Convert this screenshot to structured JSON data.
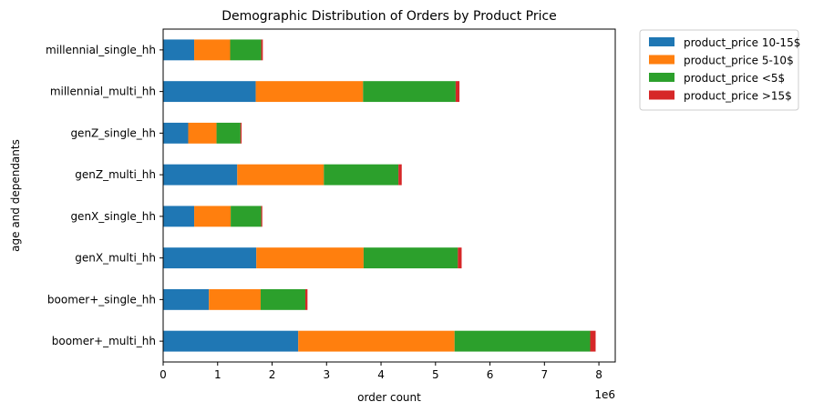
{
  "chart_data": {
    "type": "bar",
    "orientation": "horizontal",
    "stacked": true,
    "title": "Demographic Distribution of Orders by Product Price",
    "xlabel": "order count",
    "ylabel": "age and dependants",
    "x_scale_label": "1e6",
    "xlim": [
      0,
      8.3
    ],
    "xticks": [
      0,
      1,
      2,
      3,
      4,
      5,
      6,
      7,
      8
    ],
    "grid": false,
    "legend_position": "outside-top-right",
    "categories": [
      "boomer+_multi_hh",
      "boomer+_single_hh",
      "genX_multi_hh",
      "genX_single_hh",
      "genZ_multi_hh",
      "genZ_single_hh",
      "millennial_multi_hh",
      "millennial_single_hh"
    ],
    "series": [
      {
        "name": "product_price 10-15$",
        "color": "#1f77b4",
        "values": [
          2.48,
          0.84,
          1.71,
          0.57,
          1.36,
          0.46,
          1.7,
          0.57
        ]
      },
      {
        "name": "product_price 5-10$",
        "color": "#ff7f0e",
        "values": [
          2.87,
          0.95,
          1.97,
          0.67,
          1.59,
          0.52,
          1.97,
          0.66
        ]
      },
      {
        "name": "product_price <5$",
        "color": "#2ca02c",
        "values": [
          2.49,
          0.82,
          1.73,
          0.56,
          1.37,
          0.44,
          1.7,
          0.57
        ]
      },
      {
        "name": "product_price >15$",
        "color": "#d62728",
        "values": [
          0.1,
          0.04,
          0.07,
          0.02,
          0.06,
          0.02,
          0.07,
          0.03
        ]
      }
    ]
  }
}
